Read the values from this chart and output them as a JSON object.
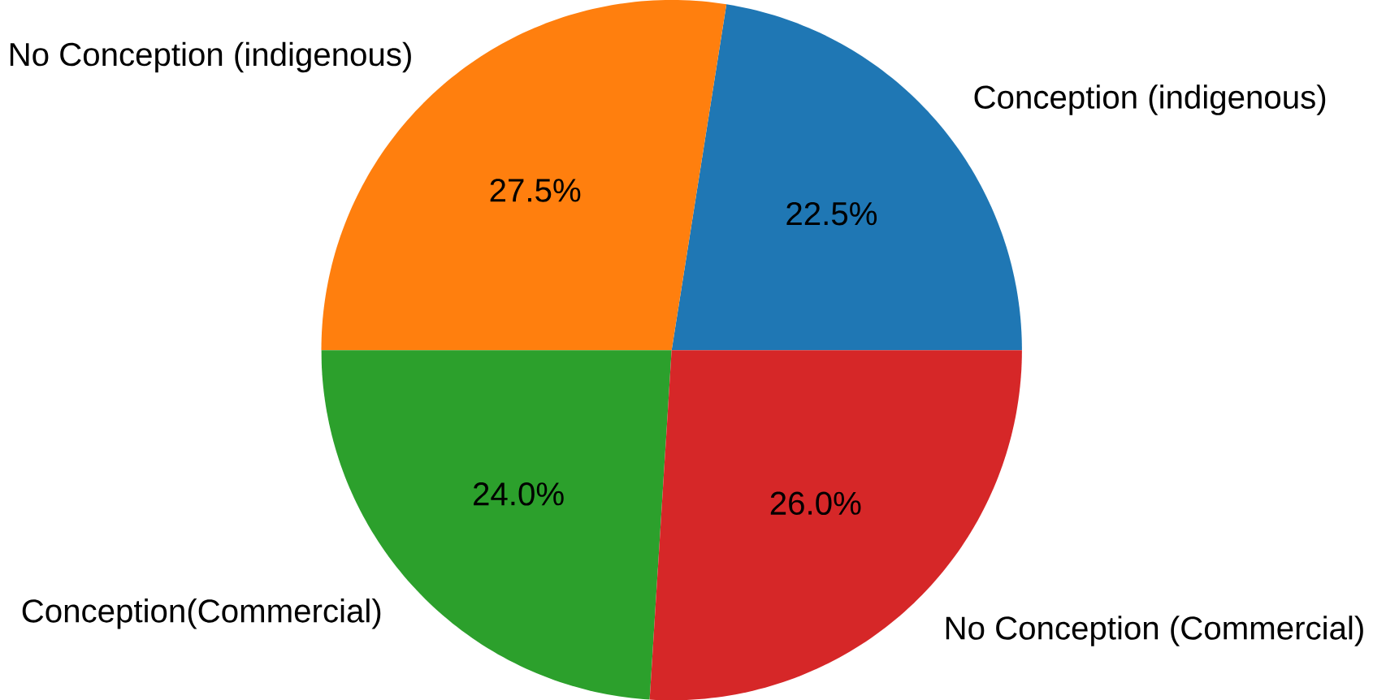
{
  "chart_data": {
    "type": "pie",
    "categories": [
      "Conception (indigenous)",
      "No Conception (indigenous)",
      "Conception(Commercial)",
      "No Conception (Commercial)"
    ],
    "values": [
      22.5,
      27.5,
      24.0,
      26.0
    ],
    "value_labels": [
      "22.5%",
      "27.5%",
      "24.0%",
      "26.0%"
    ],
    "colors": [
      "#1f77b4",
      "#ff7f0e",
      "#2ca02c",
      "#d62728"
    ]
  }
}
